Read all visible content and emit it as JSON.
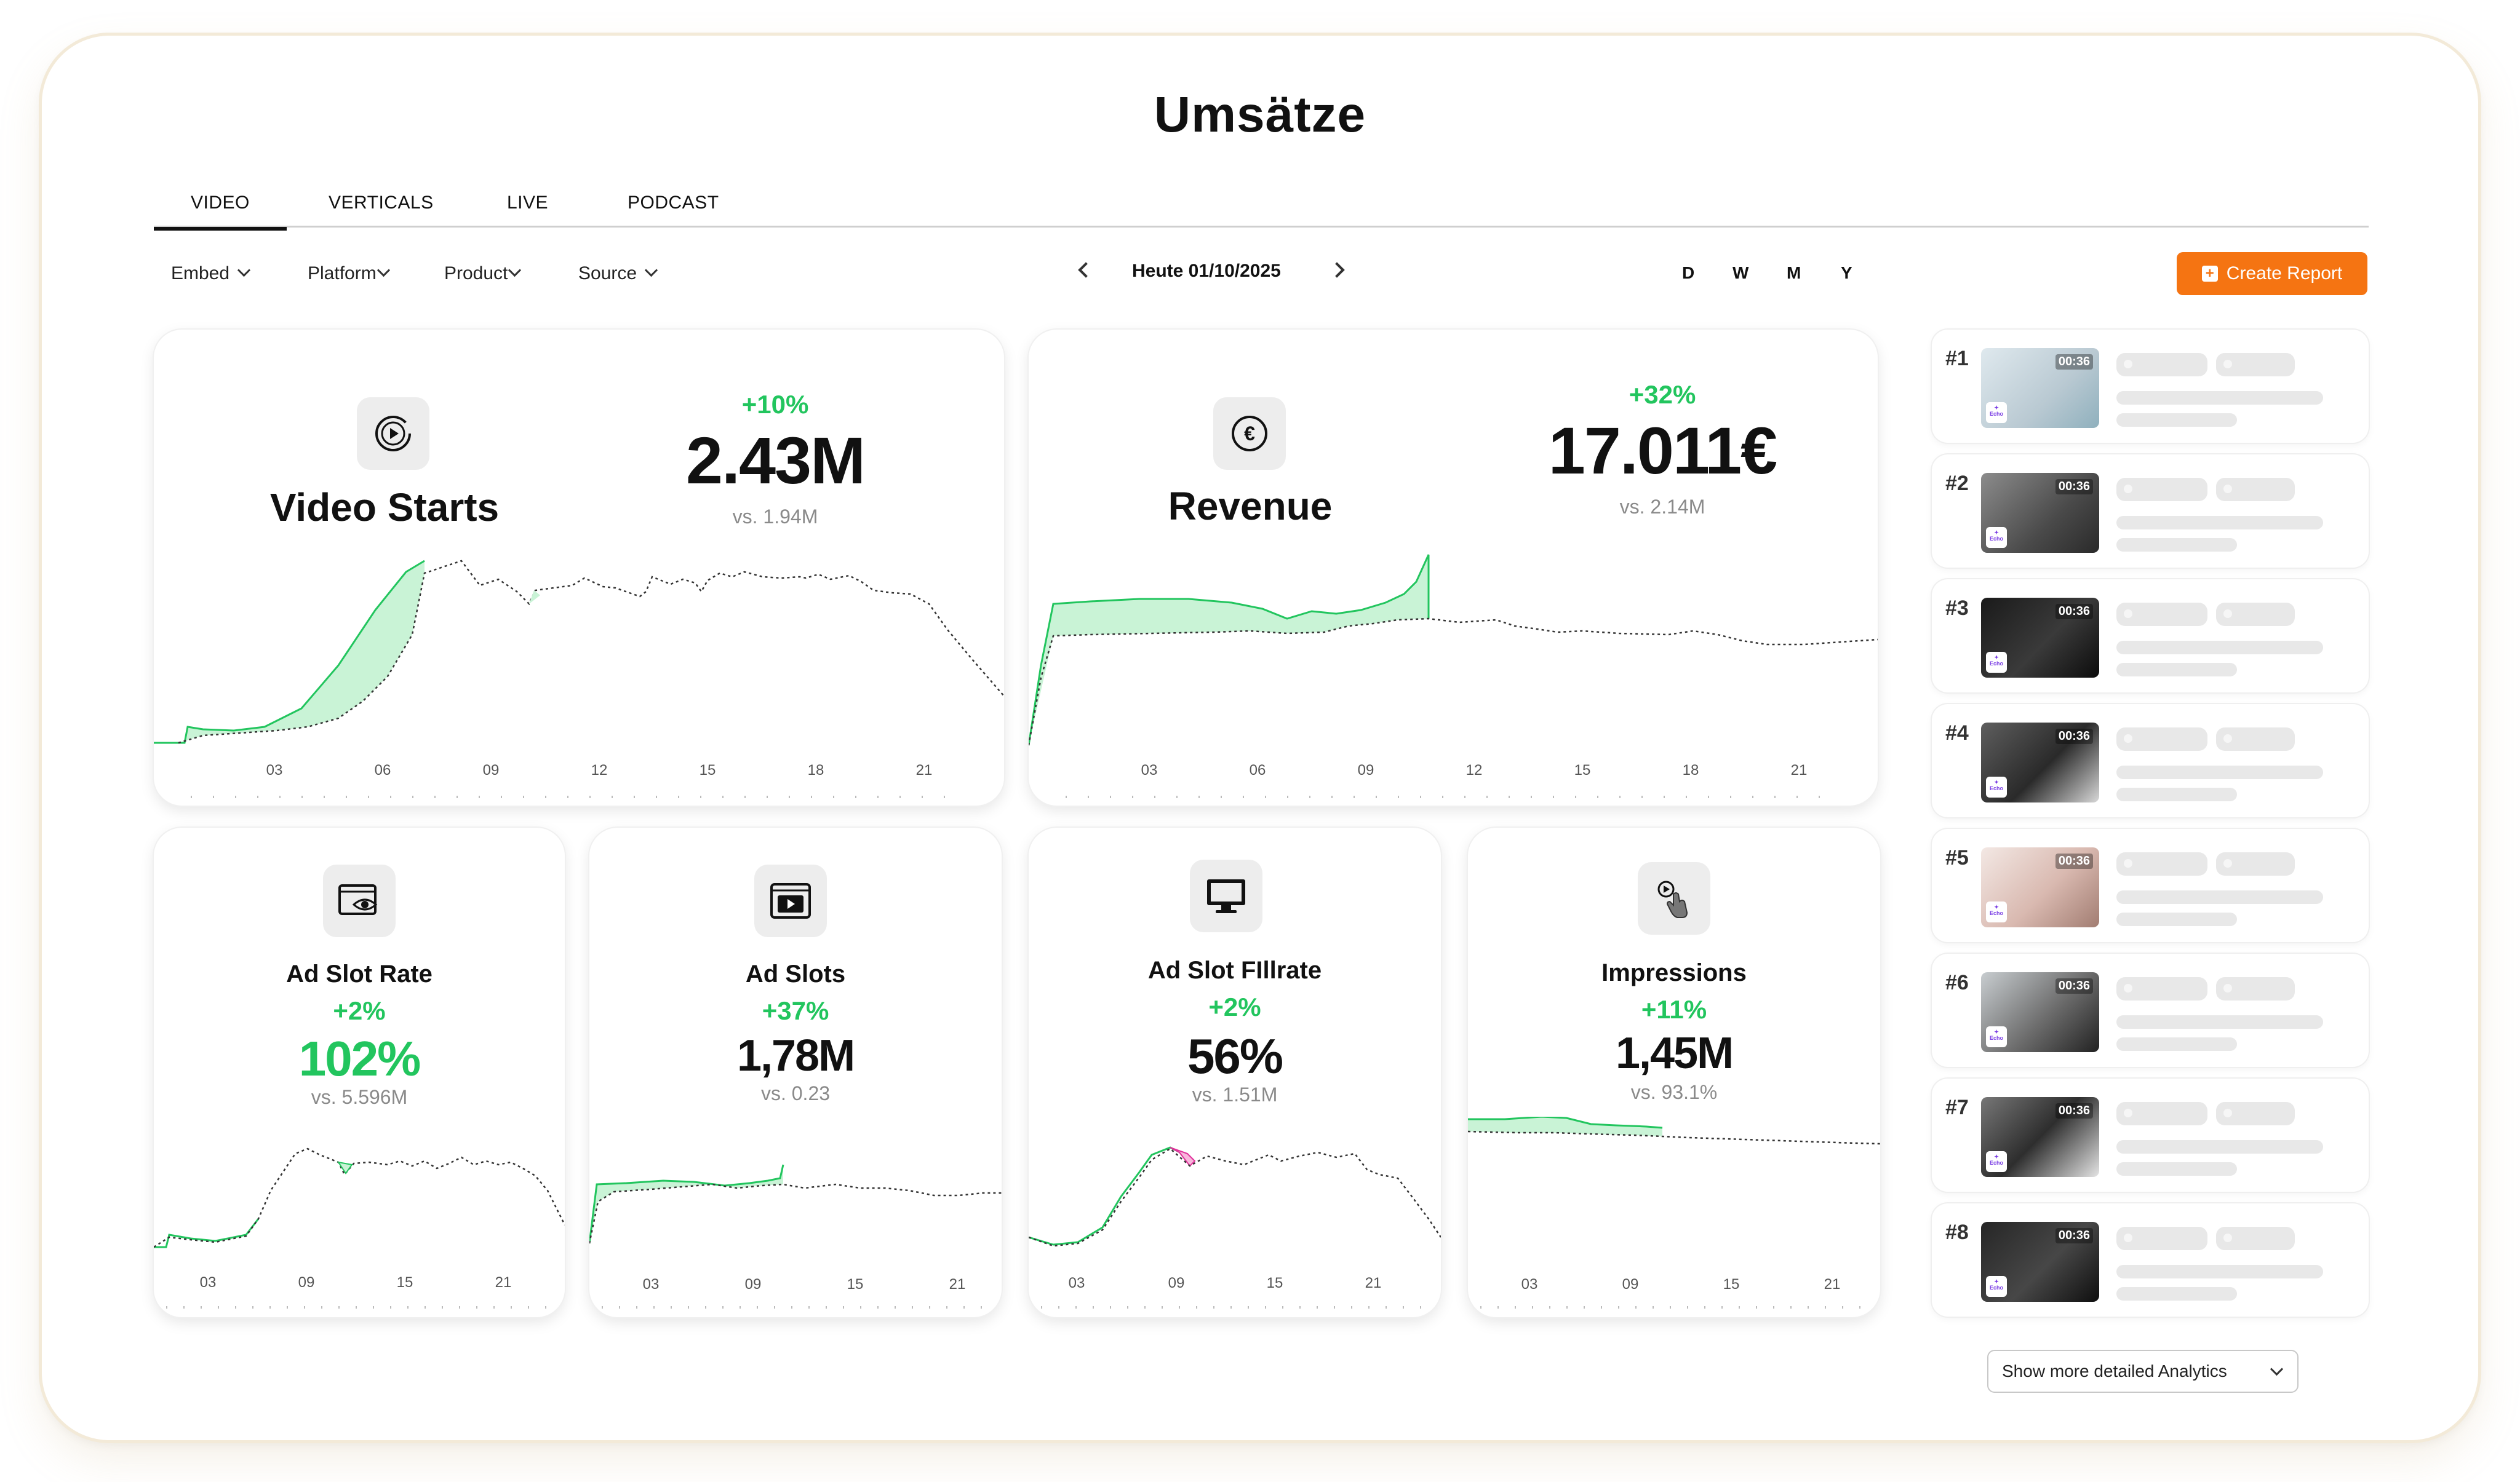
{
  "page": {
    "title": "Umsätze"
  },
  "tabs": [
    "VIDEO",
    "VERTICALS",
    "LIVE",
    "PODCAST"
  ],
  "filters": [
    "Embed",
    "Platform",
    "Product",
    "Source"
  ],
  "date_nav": {
    "label": "Heute 01/10/2025"
  },
  "periods": [
    "D",
    "W",
    "M",
    "Y"
  ],
  "create_report": {
    "label": "Create Report"
  },
  "cards": {
    "video_starts": {
      "label": "Video Starts",
      "delta": "+10%",
      "value": "2.43M",
      "vs": "vs. 1.94M",
      "icon": "play-circle-icon"
    },
    "revenue": {
      "label": "Revenue",
      "delta": "+32%",
      "value": "17.011€",
      "vs": "vs. 2.14M",
      "icon": "euro-coin-icon"
    },
    "ad_slot_rate": {
      "label": "Ad Slot Rate",
      "delta": "+2%",
      "value": "102%",
      "vs": "vs. 5.596M",
      "icon": "browser-eye-icon",
      "value_color": "#22c55e"
    },
    "ad_slots": {
      "label": "Ad Slots",
      "delta": "+37%",
      "value": "1,78M",
      "vs": "vs. 0.23",
      "icon": "video-window-icon"
    },
    "ad_slot_fillrate": {
      "label": "Ad Slot FIllrate",
      "delta": "+2%",
      "value": "56%",
      "vs": "vs. 1.51M",
      "icon": "monitor-icon"
    },
    "impressions": {
      "label": "Impressions",
      "delta": "+11%",
      "value": "1,45M",
      "vs": "vs. 93.1%",
      "icon": "tap-hand-icon"
    }
  },
  "axis_ticks": {
    "wide": [
      "03",
      "06",
      "09",
      "12",
      "15",
      "18",
      "21"
    ],
    "narrow": [
      "03",
      "09",
      "15",
      "21"
    ]
  },
  "ranking": {
    "items": [
      {
        "rank": "#1",
        "duration": "00:36",
        "badge": "Echo"
      },
      {
        "rank": "#2",
        "duration": "00:36",
        "badge": "Echo"
      },
      {
        "rank": "#3",
        "duration": "00:36",
        "badge": "Echo"
      },
      {
        "rank": "#4",
        "duration": "00:36",
        "badge": "Echo"
      },
      {
        "rank": "#5",
        "duration": "00:36",
        "badge": "Echo"
      },
      {
        "rank": "#6",
        "duration": "00:36",
        "badge": "Echo"
      },
      {
        "rank": "#7",
        "duration": "00:36",
        "badge": "Echo"
      },
      {
        "rank": "#8",
        "duration": "00:36",
        "badge": "Echo"
      }
    ],
    "more_button": "Show more detailed Analytics"
  },
  "colors": {
    "accent": "#f57412",
    "positive": "#22c55e",
    "fill": "#c9f3d6",
    "negative_fill": "#f9b6dc"
  }
}
